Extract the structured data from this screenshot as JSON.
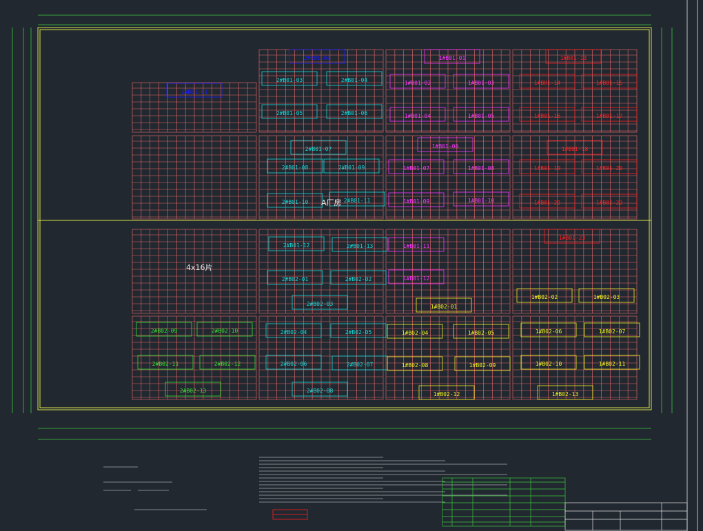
{
  "colors": {
    "background": "#212830",
    "grid": "#ef6b6b",
    "frame": "#d9e24a",
    "dimension": "#3ec83e",
    "white": "#e6e6e6",
    "blue": "#1f1fff",
    "cyan": "#18d6d6",
    "magenta": "#ff33ff",
    "red": "#ff2020",
    "green": "#30e030",
    "yellow": "#f0f020"
  },
  "array_label": "4x16片",
  "building_label": "A厂房",
  "groups": [
    {
      "color": "blue",
      "labels": [
        "2#B01-01",
        "2#B01-02"
      ]
    },
    {
      "color": "cyan",
      "labels": [
        "2#B01-03",
        "2#B01-04",
        "2#B01-05",
        "2#B01-06",
        "2#B01-07",
        "2#B01-08",
        "2#B01-09",
        "2#B01-10",
        "2#B01-11",
        "2#B01-12",
        "2#B01-13",
        "2#B02-01",
        "2#B02-02",
        "2#B02-03",
        "2#B02-04",
        "2#B02-05",
        "2#B02-06",
        "2#B02-07",
        "2#B02-08"
      ]
    },
    {
      "color": "magenta",
      "labels": [
        "1#B01-01",
        "1#B01-02",
        "1#B01-03",
        "1#B01-04",
        "1#B01-05",
        "1#B01-06",
        "1#B01-07",
        "1#B01-08",
        "1#B01-09",
        "1#B01-10",
        "1#B01-11",
        "1#B01-12"
      ]
    },
    {
      "color": "red",
      "labels": [
        "1#B01-13",
        "1#B01-14",
        "1#B01-15",
        "1#B01-16",
        "1#B01-17",
        "1#B01-18",
        "1#B01-19",
        "1#B01-20",
        "1#B01-21",
        "1#B01-22",
        "1#B01-23"
      ]
    },
    {
      "color": "yellow",
      "labels": [
        "1#B02-01",
        "1#B02-02",
        "1#B02-03",
        "1#B02-04",
        "1#B02-05",
        "1#B02-06",
        "1#B02-07",
        "1#B02-08",
        "1#B02-09",
        "1#B02-10",
        "1#B02-11",
        "1#B02-12",
        "1#B02-13"
      ]
    },
    {
      "color": "green",
      "labels": [
        "2#B02-09",
        "2#B02-10",
        "2#B02-11",
        "2#B02-12",
        "2#B02-13"
      ]
    }
  ]
}
